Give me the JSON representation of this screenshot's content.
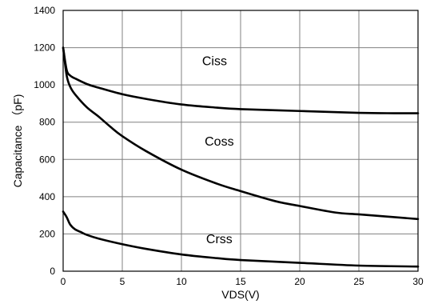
{
  "chart_data": {
    "type": "line",
    "title": "",
    "xlabel": "VDS(V)",
    "ylabel": "Capacitance （pF)",
    "xlim": [
      0,
      30
    ],
    "ylim": [
      0,
      1400
    ],
    "xticks": [
      0,
      5,
      10,
      15,
      20,
      25,
      30
    ],
    "yticks": [
      0,
      200,
      400,
      600,
      800,
      1000,
      1200,
      1400
    ],
    "grid": true,
    "legend": "none",
    "colors": {
      "line": "#000000",
      "grid": "#808080",
      "frame": "#000000",
      "background": "#ffffff"
    },
    "series": [
      {
        "name": "Ciss",
        "x": [
          0,
          0.3,
          0.6,
          1,
          2,
          3,
          5,
          7,
          10,
          13,
          15,
          20,
          25,
          28,
          30
        ],
        "y": [
          1200,
          1080,
          1050,
          1035,
          1005,
          985,
          950,
          925,
          895,
          878,
          870,
          860,
          850,
          848,
          848
        ]
      },
      {
        "name": "Coss",
        "x": [
          0,
          0.3,
          0.6,
          1,
          2,
          3,
          4,
          5,
          7,
          10,
          13,
          15,
          18,
          20,
          23,
          25,
          28,
          30
        ],
        "y": [
          1200,
          1050,
          990,
          950,
          880,
          830,
          775,
          725,
          645,
          545,
          470,
          430,
          375,
          350,
          315,
          305,
          290,
          280
        ]
      },
      {
        "name": "Crss",
        "x": [
          0,
          0.3,
          0.6,
          1,
          1.5,
          2,
          3,
          5,
          7,
          10,
          13,
          15,
          20,
          25,
          30
        ],
        "y": [
          320,
          290,
          250,
          225,
          210,
          195,
          175,
          145,
          120,
          90,
          70,
          60,
          45,
          30,
          25
        ]
      }
    ],
    "annotations": [
      {
        "text": "Ciss",
        "x": 12.8,
        "y": 1105
      },
      {
        "text": "Coss",
        "x": 13.2,
        "y": 675
      },
      {
        "text": "Crss",
        "x": 13.2,
        "y": 150
      }
    ]
  }
}
